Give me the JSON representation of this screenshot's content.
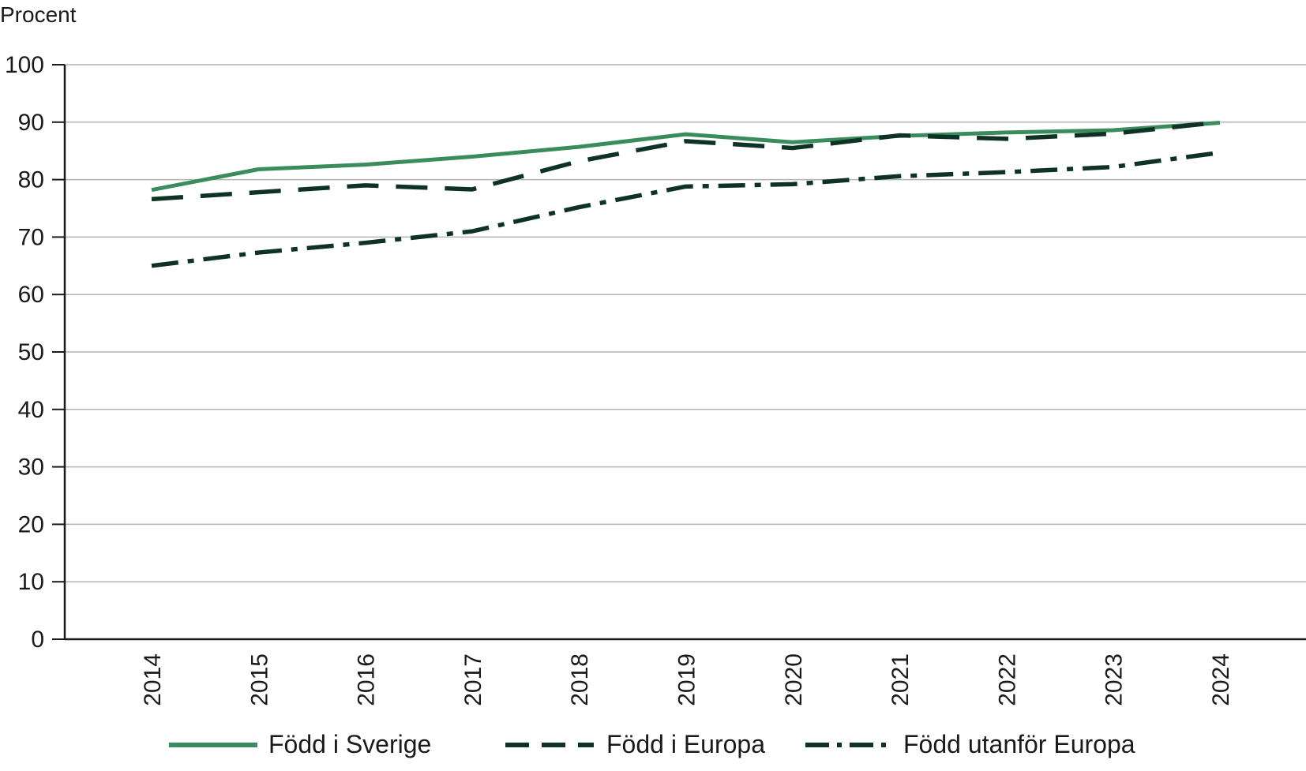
{
  "chart_data": {
    "type": "line",
    "ylabel": "Procent",
    "ylim": [
      0,
      100
    ],
    "yticks": [
      0,
      10,
      20,
      30,
      40,
      50,
      60,
      70,
      80,
      90,
      100
    ],
    "categories": [
      "2014",
      "2015",
      "2016",
      "2017",
      "2018",
      "2019",
      "2020",
      "2021",
      "2022",
      "2023",
      "2024"
    ],
    "grid": "horizontal",
    "legend_position": "bottom",
    "series": [
      {
        "name": "Född i Sverige",
        "color": "#3a8c5c",
        "style": "solid",
        "values": [
          78.2,
          81.8,
          82.6,
          84.0,
          85.7,
          87.9,
          86.5,
          87.6,
          88.2,
          88.6,
          89.9
        ]
      },
      {
        "name": "Född i Europa",
        "color": "#0e3325",
        "style": "dashed",
        "values": [
          76.6,
          77.8,
          79.0,
          78.3,
          83.2,
          86.7,
          85.5,
          87.7,
          87.1,
          88.0,
          90.0
        ]
      },
      {
        "name": "Född utanför Europa",
        "color": "#0e3325",
        "style": "dashdot",
        "values": [
          65.0,
          67.3,
          69.0,
          71.0,
          75.2,
          78.8,
          79.2,
          80.6,
          81.3,
          82.2,
          84.7
        ]
      }
    ]
  }
}
